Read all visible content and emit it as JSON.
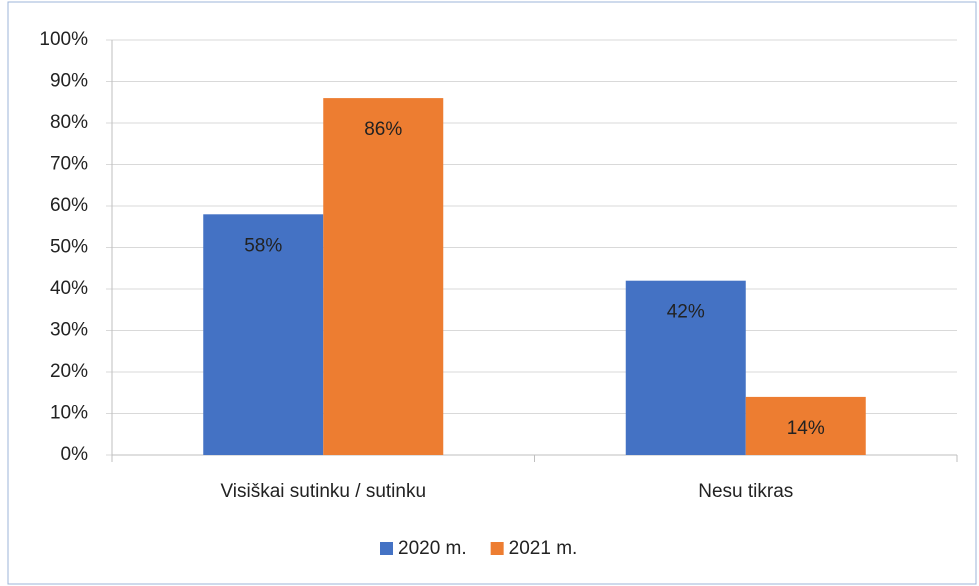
{
  "chart_data": {
    "type": "bar",
    "categories": [
      "Visiškai sutinku / sutinku",
      "Nesu tikras"
    ],
    "series": [
      {
        "name": "2020 m.",
        "color": "#4472c4",
        "values": [
          58,
          42
        ],
        "value_labels": [
          "58%",
          "42%"
        ]
      },
      {
        "name": "2021 m.",
        "color": "#ed7d31",
        "values": [
          86,
          14
        ],
        "value_labels": [
          "86%",
          "14%"
        ]
      }
    ],
    "ylim": [
      0,
      100
    ],
    "yticks": [
      {
        "value": 0,
        "label": "0%"
      },
      {
        "value": 10,
        "label": "10%"
      },
      {
        "value": 20,
        "label": "20%"
      },
      {
        "value": 30,
        "label": "30%"
      },
      {
        "value": 40,
        "label": "40%"
      },
      {
        "value": 50,
        "label": "50%"
      },
      {
        "value": 60,
        "label": "60%"
      },
      {
        "value": 70,
        "label": "70%"
      },
      {
        "value": 80,
        "label": "80%"
      },
      {
        "value": 90,
        "label": "90%"
      },
      {
        "value": 100,
        "label": "100%"
      }
    ],
    "grid": true,
    "legend": "bottom"
  }
}
